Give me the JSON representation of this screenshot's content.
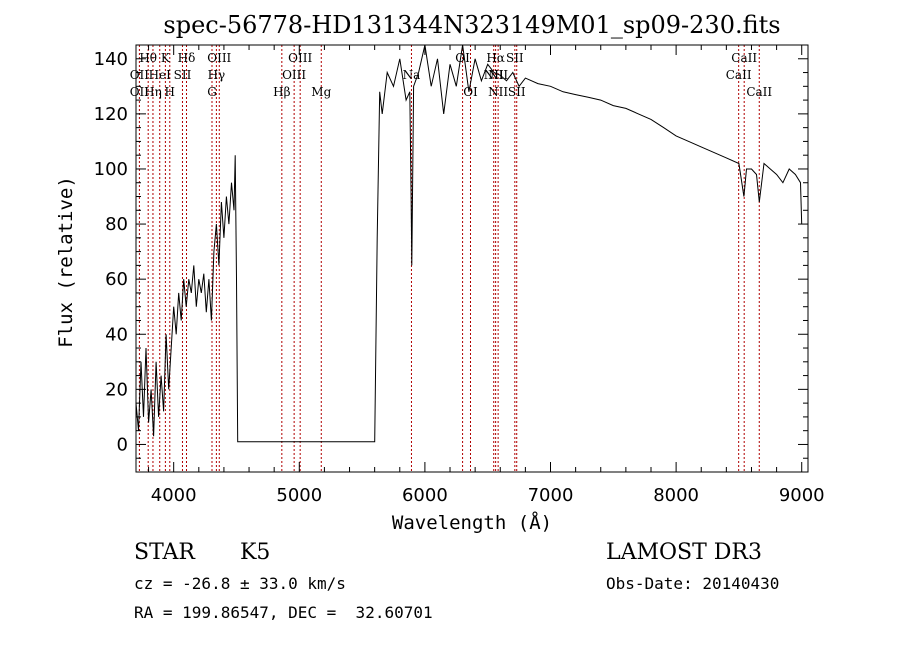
{
  "chart_data": {
    "type": "line",
    "title": "spec-56778-HD131344N323149M01_sp09-230.fits",
    "xlabel": "Wavelength (Å)",
    "ylabel": "Flux (relative)",
    "xlim": [
      3700,
      9050
    ],
    "ylim": [
      -10,
      145
    ],
    "xticks": [
      4000,
      5000,
      6000,
      7000,
      8000,
      9000
    ],
    "yticks": [
      0,
      20,
      40,
      60,
      80,
      100,
      120,
      140
    ],
    "series": [
      {
        "name": "flux",
        "x": [
          3700,
          3720,
          3740,
          3760,
          3780,
          3800,
          3820,
          3840,
          3860,
          3880,
          3900,
          3920,
          3940,
          3960,
          3980,
          4000,
          4020,
          4040,
          4060,
          4080,
          4100,
          4120,
          4140,
          4160,
          4180,
          4200,
          4220,
          4240,
          4260,
          4280,
          4300,
          4320,
          4340,
          4360,
          4380,
          4400,
          4420,
          4440,
          4460,
          4480,
          4490,
          4500,
          4510,
          5600,
          5620,
          5640,
          5660,
          5700,
          5750,
          5800,
          5850,
          5880,
          5890,
          5896,
          5910,
          5950,
          6000,
          6050,
          6100,
          6150,
          6200,
          6250,
          6300,
          6350,
          6400,
          6450,
          6500,
          6550,
          6600,
          6650,
          6700,
          6750,
          6800,
          6900,
          7000,
          7100,
          7200,
          7300,
          7400,
          7500,
          7600,
          7700,
          7800,
          7900,
          8000,
          8100,
          8200,
          8300,
          8400,
          8500,
          8540,
          8560,
          8600,
          8640,
          8662,
          8700,
          8750,
          8800,
          8850,
          8900,
          8950,
          8990,
          9000
        ],
        "y": [
          15,
          5,
          30,
          10,
          35,
          8,
          20,
          3,
          30,
          10,
          25,
          12,
          40,
          20,
          35,
          50,
          40,
          55,
          45,
          60,
          50,
          60,
          55,
          65,
          50,
          60,
          55,
          62,
          48,
          60,
          45,
          70,
          80,
          65,
          88,
          75,
          90,
          80,
          95,
          85,
          105,
          60,
          1,
          1,
          75,
          128,
          120,
          135,
          130,
          140,
          125,
          128,
          90,
          65,
          130,
          135,
          145,
          130,
          140,
          120,
          138,
          130,
          145,
          128,
          140,
          132,
          138,
          135,
          134,
          132,
          135,
          130,
          133,
          131,
          130,
          128,
          127,
          126,
          125,
          123,
          122,
          120,
          118,
          115,
          112,
          110,
          108,
          106,
          104,
          102,
          90,
          100,
          100,
          98,
          88,
          102,
          100,
          98,
          95,
          100,
          98,
          95,
          80
        ]
      }
    ],
    "lines": [
      {
        "name": "OII",
        "x": 3727
      },
      {
        "name": "Hθ",
        "x": 3797
      },
      {
        "name": "Hη",
        "x": 3835
      },
      {
        "name": "HeI",
        "x": 3889
      },
      {
        "name": "K",
        "x": 3934
      },
      {
        "name": "H",
        "x": 3969
      },
      {
        "name": "SII",
        "x": 4070
      },
      {
        "name": "Hδ",
        "x": 4102
      },
      {
        "name": "G",
        "x": 4305
      },
      {
        "name": "Hγ",
        "x": 4340
      },
      {
        "name": "OIII",
        "x": 4363
      },
      {
        "name": "Hβ",
        "x": 4861
      },
      {
        "name": "OIII",
        "x": 4959
      },
      {
        "name": "OIII",
        "x": 5007
      },
      {
        "name": "Mg",
        "x": 5175
      },
      {
        "name": "Na",
        "x": 5893
      },
      {
        "name": "OI",
        "x": 6300
      },
      {
        "name": "OI",
        "x": 6363
      },
      {
        "name": "NII",
        "x": 6548
      },
      {
        "name": "Hα",
        "x": 6563
      },
      {
        "name": "NII",
        "x": 6583
      },
      {
        "name": "SII",
        "x": 6716
      },
      {
        "name": "SII",
        "x": 6731
      },
      {
        "name": "CaII",
        "x": 8498
      },
      {
        "name": "CaII",
        "x": 8542
      },
      {
        "name": "CaII",
        "x": 8662
      }
    ],
    "annotations": [
      {
        "text": "Hθ",
        "x": 3797,
        "row": 0
      },
      {
        "text": "K",
        "x": 3934,
        "row": 0
      },
      {
        "text": "Hδ",
        "x": 4102,
        "row": 0
      },
      {
        "text": "OIII",
        "x": 4363,
        "row": 0
      },
      {
        "text": "OIII",
        "x": 5007,
        "row": 0
      },
      {
        "text": "OI",
        "x": 6300,
        "row": 0
      },
      {
        "text": "Hα",
        "x": 6563,
        "row": 0
      },
      {
        "text": "SII",
        "x": 6716,
        "row": 0
      },
      {
        "text": "CaII",
        "x": 8542,
        "row": 0
      },
      {
        "text": "OII",
        "x": 3727,
        "row": 1
      },
      {
        "text": "HeI",
        "x": 3889,
        "row": 1
      },
      {
        "text": "SII",
        "x": 4070,
        "row": 1
      },
      {
        "text": "Hγ",
        "x": 4340,
        "row": 1
      },
      {
        "text": "OIII",
        "x": 4959,
        "row": 1
      },
      {
        "text": "Na",
        "x": 5893,
        "row": 1
      },
      {
        "text": "NII",
        "x": 6548,
        "row": 1
      },
      {
        "text": "NII",
        "x": 6583,
        "row": 1
      },
      {
        "text": "CaII",
        "x": 8498,
        "row": 1
      },
      {
        "text": "OII",
        "x": 3727,
        "row": 2
      },
      {
        "text": "Hη",
        "x": 3835,
        "row": 2
      },
      {
        "text": "H",
        "x": 3969,
        "row": 2
      },
      {
        "text": "G",
        "x": 4305,
        "row": 2
      },
      {
        "text": "Hβ",
        "x": 4861,
        "row": 2
      },
      {
        "text": "Mg",
        "x": 5175,
        "row": 2
      },
      {
        "text": "OI",
        "x": 6363,
        "row": 2
      },
      {
        "text": "NII",
        "x": 6583,
        "row": 2
      },
      {
        "text": "SII",
        "x": 6731,
        "row": 2
      },
      {
        "text": "CaII",
        "x": 8662,
        "row": 2
      }
    ],
    "line_color": "#b00000"
  },
  "info": {
    "object_class": "STAR",
    "subclass": "K5",
    "survey": "LAMOST DR3",
    "cz": "cz = -26.8 ± 33.0 km/s",
    "obs_date": "Obs-Date: 20140430",
    "coords": "RA = 199.86547, DEC =  32.60701"
  }
}
